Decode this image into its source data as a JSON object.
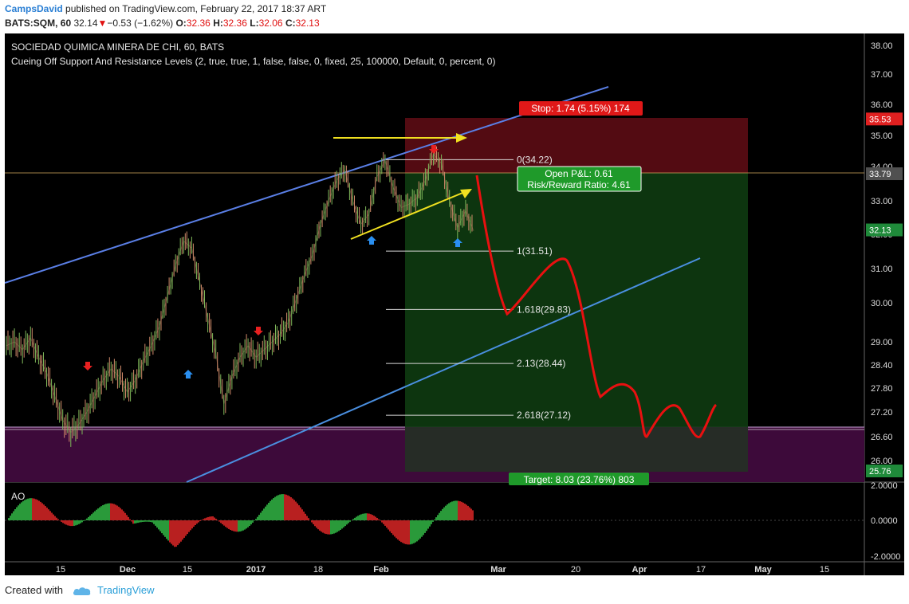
{
  "header": {
    "author": "CampsDavid",
    "published": "published on TradingView.com, February 22, 2017 18:37 ART",
    "symbol": "BATS:SQM, 60",
    "last": "32.14",
    "change": "−0.53 (−1.62%)",
    "o_label": "O:",
    "o_val": "32.36",
    "h_label": "H:",
    "h_val": "32.36",
    "l_label": "L:",
    "l_val": "32.06",
    "c_label": "C:",
    "c_val": "32.13",
    "colors": {
      "down": "#e01010",
      "author": "#2a7fd4"
    }
  },
  "legend": {
    "title": "SOCIEDAD QUIMICA MINERA DE CHI, 60, BATS",
    "indicator": "Cueing Off Support And Resistance Levels (2, true, true, 1, false, false, 0, fixed, 25, 100000, Default, 0, percent, 0)"
  },
  "position": {
    "stop_label": "Stop: 1.74 (5.15%) 174",
    "open_pl": "Open P&L: 0.61",
    "risk_reward": "Risk/Reward Ratio: 4.61",
    "target_label": "Target: 8.03 (23.76%) 803",
    "entry": 33.79,
    "stop": 35.53,
    "target": 25.76
  },
  "fib_levels": [
    {
      "label": "0(34.22)",
      "value": 34.22
    },
    {
      "label": "1(31.51)",
      "value": 31.51
    },
    {
      "label": "1.618(29.83)",
      "value": 29.83
    },
    {
      "label": "2.13(28.44)",
      "value": 28.44
    },
    {
      "label": "2.618(27.12)",
      "value": 27.12
    }
  ],
  "price_tags": [
    {
      "label": "35.53",
      "value": 35.53,
      "color": "#e02020"
    },
    {
      "label": "33.79",
      "value": 33.79,
      "color": "#505050"
    },
    {
      "label": "32.13",
      "value": 32.13,
      "color": "#1f8a3a"
    },
    {
      "label": "25.76",
      "value": 25.76,
      "color": "#1f8a3a"
    }
  ],
  "ao": {
    "label": "AO",
    "ticks": [
      "2.0000",
      "0.0000",
      "-2.0000"
    ]
  },
  "footer": {
    "created_with": "Created with",
    "brand": "TradingView"
  },
  "chart_data": {
    "type": "line",
    "title": "SOCIEDAD QUIMICA MINERA DE CHI, 60, BATS",
    "xlabel": "",
    "ylabel": "",
    "ylim": [
      25.5,
      38.6
    ],
    "y_ticks": [
      "38.00",
      "37.00",
      "36.00",
      "35.00",
      "34.00",
      "33.00",
      "32.00",
      "31.00",
      "30.00",
      "29.00",
      "28.40",
      "27.80",
      "27.20",
      "26.60",
      "26.00"
    ],
    "x_ticks": [
      "15",
      "Dec",
      "15",
      "2017",
      "18",
      "Feb",
      "Mar",
      "20",
      "Apr",
      "17",
      "May",
      "15"
    ],
    "series": [
      {
        "values": [
          28.9,
          29.0,
          28.8,
          29.1,
          28.6,
          28.2,
          27.6,
          27.0,
          26.7,
          26.9,
          27.2,
          27.6,
          28.0,
          28.3,
          28.1,
          27.7,
          28.0,
          28.5,
          28.9,
          29.4,
          30.2,
          31.1,
          31.8,
          31.6,
          30.6,
          29.6,
          28.7,
          27.4,
          28.1,
          28.6,
          28.9,
          28.6,
          28.8,
          29.0,
          29.2,
          29.5,
          30.1,
          30.8,
          31.4,
          32.3,
          33.0,
          33.6,
          33.9,
          33.0,
          32.3,
          32.6,
          33.7,
          34.2,
          33.4,
          32.8,
          32.9,
          33.1,
          33.6,
          34.4,
          34.1,
          33.0,
          32.2,
          32.7,
          32.1
        ]
      }
    ]
  }
}
